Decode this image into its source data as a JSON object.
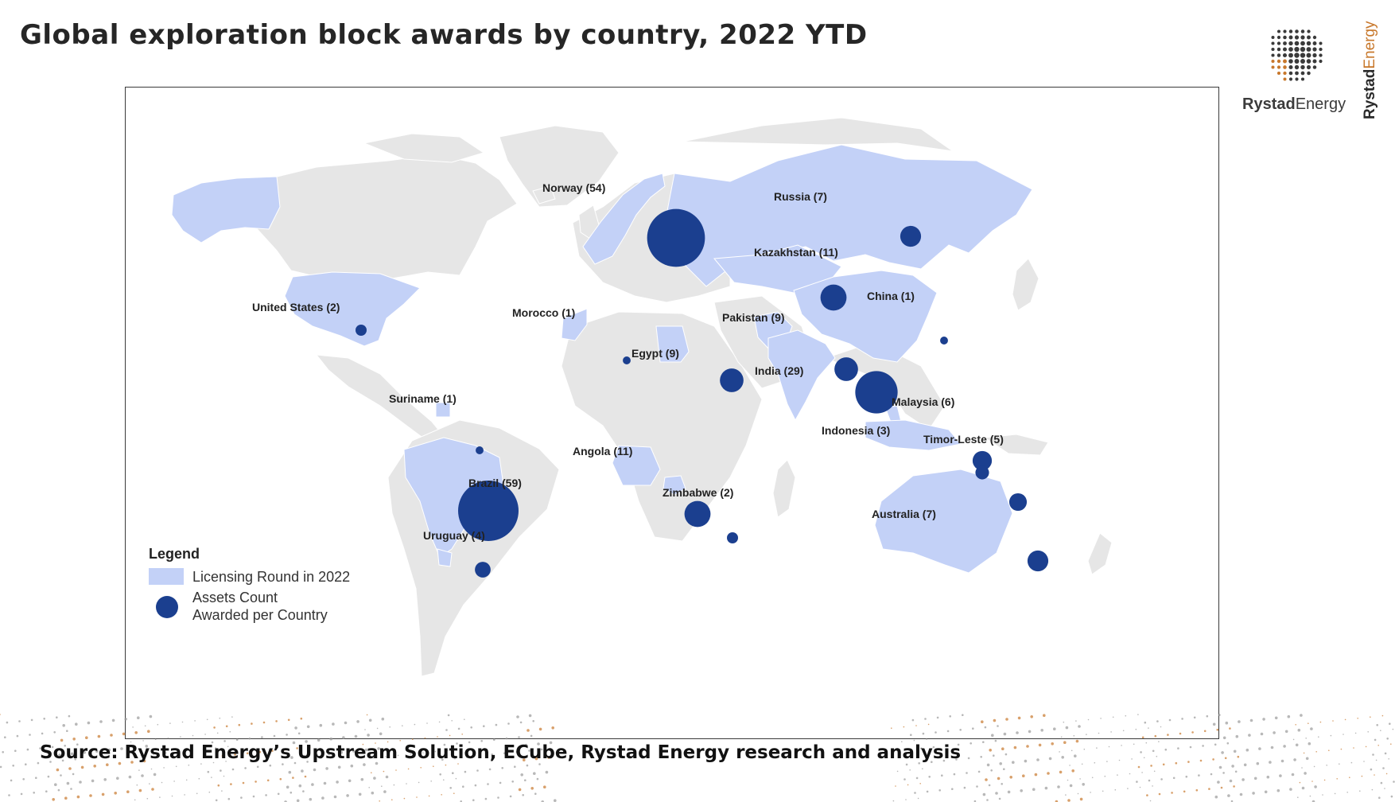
{
  "title": "Global exploration block awards by country, 2022 YTD",
  "source": "Source: Rystad Energy’s Upstream Solution,  ECube, Rystad Energy research and analysis",
  "brand": {
    "name_bold": "Rystad",
    "name_regular": "Energy",
    "vertical_bold": "Rystad",
    "vertical_regular": "Energy"
  },
  "colors": {
    "land": "#e6e6e6",
    "licensing": "#c3d1f7",
    "bubble": "#1b3f8f",
    "accent": "#c8782c"
  },
  "legend": {
    "title": "Legend",
    "licensing_label": "Licensing Round in 2022",
    "assets_label_line1": "Assets Count",
    "assets_label_line2": "Awarded per Country"
  },
  "countries": [
    {
      "label": "Norway (54)",
      "name": "Norway",
      "assets": 54
    },
    {
      "label": "Russia (7)",
      "name": "Russia",
      "assets": 7
    },
    {
      "label": "Kazakhstan (11)",
      "name": "Kazakhstan",
      "assets": 11
    },
    {
      "label": "China (1)",
      "name": "China",
      "assets": 1
    },
    {
      "label": "Pakistan (9)",
      "name": "Pakistan",
      "assets": 9
    },
    {
      "label": "India (29)",
      "name": "India",
      "assets": 29
    },
    {
      "label": "Egypt (9)",
      "name": "Egypt",
      "assets": 9
    },
    {
      "label": "Morocco (1)",
      "name": "Morocco",
      "assets": 1
    },
    {
      "label": "United States (2)",
      "name": "United States",
      "assets": 2
    },
    {
      "label": "Suriname (1)",
      "name": "Suriname",
      "assets": 1
    },
    {
      "label": "Brazil (59)",
      "name": "Brazil",
      "assets": 59
    },
    {
      "label": "Uruguay (4)",
      "name": "Uruguay",
      "assets": 4
    },
    {
      "label": "Angola (11)",
      "name": "Angola",
      "assets": 11
    },
    {
      "label": "Zimbabwe (2)",
      "name": "Zimbabwe",
      "assets": 2
    },
    {
      "label": "Malaysia (6)",
      "name": "Malaysia",
      "assets": 6
    },
    {
      "label": "Indonesia (3)",
      "name": "Indonesia",
      "assets": 3
    },
    {
      "label": "Timor-Leste (5)",
      "name": "Timor-Leste",
      "assets": 5
    },
    {
      "label": "Australia (7)",
      "name": "Australia",
      "assets": 7
    }
  ]
}
